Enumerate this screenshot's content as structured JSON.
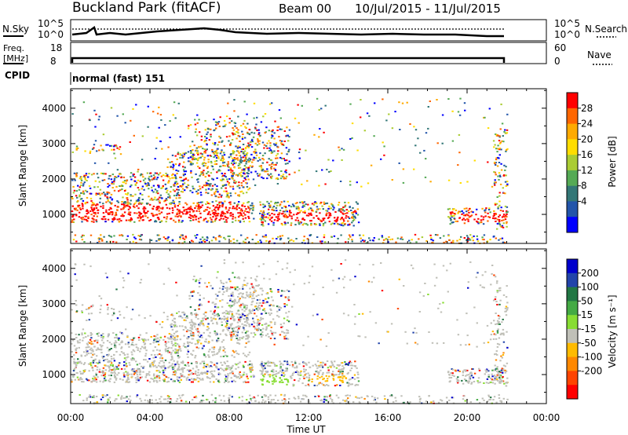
{
  "header": {
    "station": "Buckland Park (fitACF)",
    "beam": "Beam 00",
    "date_range": "10/Jul/2015 - 11/Jul/2015"
  },
  "noise_panel": {
    "left_label": "N.Sky",
    "right_label": "N.Search",
    "left_ticks": [
      "10^5",
      "10^0"
    ],
    "right_ticks": [
      "10^5",
      "10^0"
    ]
  },
  "freq_panel": {
    "left_label_line1": "Freq.",
    "left_label_line2": "[MHz]",
    "left_ticks": [
      "18",
      "8"
    ],
    "right_label": "Nave",
    "right_ticks": [
      "60",
      "0"
    ],
    "cpid_label": "CPID",
    "cpid_value": "normal (fast) 151"
  },
  "chart_data": [
    {
      "type": "heatmap",
      "name": "power",
      "ylabel": "Slant Range [km]",
      "yticks": [
        1000,
        2000,
        3000,
        4000
      ],
      "ylim": [
        180,
        4550
      ],
      "colorbar_label": "Power [dB]",
      "colorbar_ticks": [
        "28",
        "24",
        "20",
        "16",
        "12",
        "8",
        "4"
      ],
      "colorbar_colors": [
        "#ff0000",
        "#ff6600",
        "#ffaa00",
        "#ffdd00",
        "#aacc33",
        "#55aa55",
        "#337777",
        "#2255aa",
        "#0000ff"
      ]
    },
    {
      "type": "heatmap",
      "name": "velocity",
      "ylabel": "Slant Range [km]",
      "yticks": [
        1000,
        2000,
        3000,
        4000
      ],
      "ylim": [
        180,
        4550
      ],
      "colorbar_label": "Velocity [m s⁻¹]",
      "colorbar_ticks": [
        "200",
        "100",
        "50",
        "15",
        "-15",
        "-50",
        "-100",
        "-200"
      ],
      "colorbar_colors": [
        "#0000cc",
        "#2244aa",
        "#227744",
        "#44aa44",
        "#88dd33",
        "#c0c0b8",
        "#ffbb00",
        "#ff8800",
        "#ff4400",
        "#ff0000"
      ]
    }
  ],
  "xaxis": {
    "label": "Time UT",
    "ticks": [
      "00:00",
      "04:00",
      "08:00",
      "12:00",
      "16:00",
      "20:00",
      "00:00"
    ]
  }
}
